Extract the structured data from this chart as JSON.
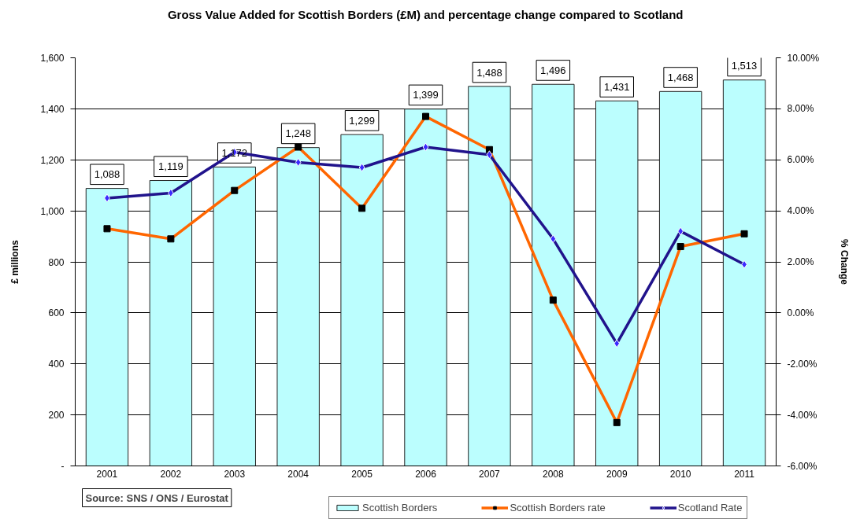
{
  "chart_data": {
    "type": "bar",
    "title": "Gross Value Added for Scottish Borders (£M) and percentage change compared to Scotland",
    "ylabel": "£ millions",
    "y2label": "% Change",
    "categories": [
      "2001",
      "2002",
      "2003",
      "2004",
      "2005",
      "2006",
      "2007",
      "2008",
      "2009",
      "2010",
      "2011"
    ],
    "series": [
      {
        "name": "Scottish Borders",
        "color": "#bbfefe",
        "values": [
          1088,
          1119,
          1172,
          1248,
          1299,
          1399,
          1488,
          1496,
          1431,
          1468,
          1513
        ],
        "value_labels": [
          "1,088",
          "1,119",
          "1,172",
          "1,248",
          "1,299",
          "1,399",
          "1,488",
          "1,496",
          "1,431",
          "1,468",
          "1,513"
        ]
      },
      {
        "name": "Scottish Borders rate",
        "type": "line",
        "axis": "y2",
        "color": "#ff6600",
        "marker": "square",
        "values": [
          3.3,
          2.9,
          4.8,
          6.5,
          4.1,
          7.7,
          6.4,
          0.5,
          -4.3,
          2.6,
          3.1
        ]
      },
      {
        "name": "Scotland Rate",
        "type": "line",
        "axis": "y2",
        "color": "#21138c",
        "marker": "diamond",
        "values": [
          4.5,
          4.7,
          6.3,
          5.9,
          5.7,
          6.5,
          6.2,
          2.9,
          -1.2,
          3.2,
          1.9
        ]
      }
    ],
    "ylim": [
      0,
      1600
    ],
    "yticks": [
      {
        "value": 0,
        "label": "-"
      },
      200,
      400,
      600,
      800,
      {
        "value": 1000,
        "label": "1,000"
      },
      {
        "value": 1200,
        "label": "1,200"
      },
      {
        "value": 1400,
        "label": "1,400"
      },
      {
        "value": 1600,
        "label": "1,600"
      }
    ],
    "y2lim": [
      -6,
      10
    ],
    "y2ticks": [
      {
        "value": -6,
        "label": "-6.00%"
      },
      {
        "value": -4,
        "label": "-4.00%"
      },
      {
        "value": -2,
        "label": "-2.00%"
      },
      {
        "value": 0,
        "label": "0.00%"
      },
      {
        "value": 2,
        "label": "2.00%"
      },
      {
        "value": 4,
        "label": "4.00%"
      },
      {
        "value": 6,
        "label": "6.00%"
      },
      {
        "value": 8,
        "label": "8.00%"
      },
      {
        "value": 10,
        "label": "10.00%"
      }
    ],
    "grid": "y",
    "legend": "bottom",
    "annotations": [
      "Source: SNS / ONS / Eurostat"
    ]
  }
}
